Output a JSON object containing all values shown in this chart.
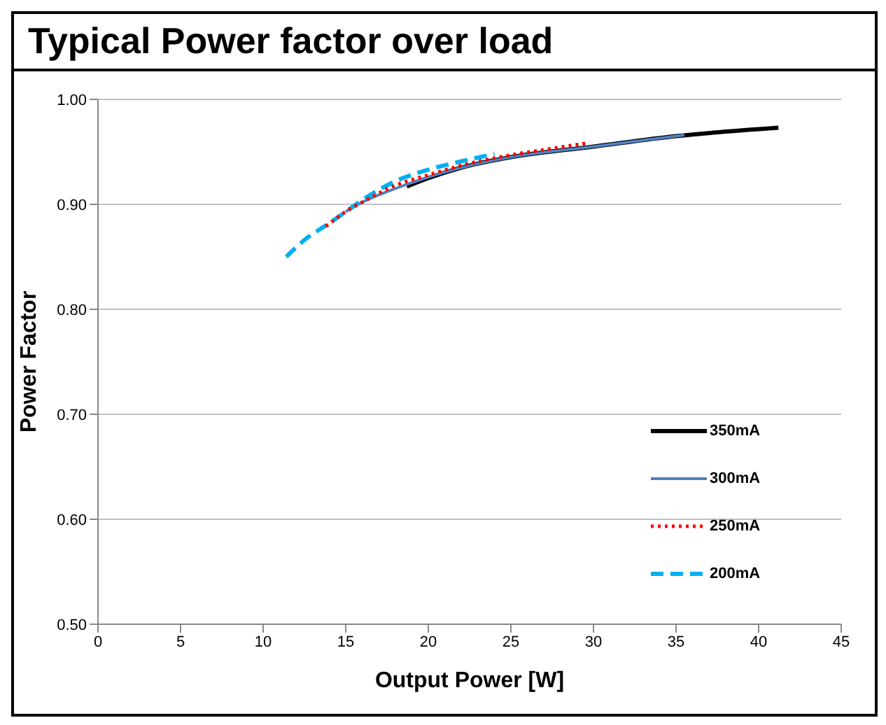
{
  "chart_data": {
    "type": "line",
    "title": "Typical Power factor over load",
    "xlabel": "Output Power [W]",
    "ylabel": "Power Factor",
    "xlim": [
      0,
      45
    ],
    "xticks": [
      0,
      5,
      10,
      15,
      20,
      25,
      30,
      35,
      40,
      45
    ],
    "ylim": [
      0.5,
      1.0
    ],
    "yticks": [
      {
        "value": 0.5,
        "label": "0.50"
      },
      {
        "value": 0.6,
        "label": "0.60"
      },
      {
        "value": 0.7,
        "label": "0.70"
      },
      {
        "value": 0.8,
        "label": "0.80"
      },
      {
        "value": 0.9,
        "label": "0.90"
      },
      {
        "value": 1.0,
        "label": "1.00"
      }
    ],
    "grid": "y",
    "legend": "right",
    "marker": "none",
    "series": [
      {
        "name": "350mA",
        "color": "#000000",
        "line_style": "solid",
        "x": [
          18.7,
          20,
          22,
          25,
          30,
          35,
          41.2
        ],
        "values": [
          0.917,
          0.925,
          0.935,
          0.945,
          0.955,
          0.965,
          0.973
        ]
      },
      {
        "name": "300mA",
        "color": "#4f81bd",
        "line_style": "solid",
        "x": [
          15,
          16,
          18,
          20,
          22,
          25,
          30,
          35.5
        ],
        "values": [
          0.893,
          0.902,
          0.915,
          0.926,
          0.935,
          0.945,
          0.955,
          0.966
        ]
      },
      {
        "name": "250mA",
        "color": "#ff0000",
        "line_style": "dotted",
        "x": [
          13.8,
          15,
          16,
          18,
          20,
          22,
          25,
          27,
          29.5
        ],
        "values": [
          0.879,
          0.893,
          0.902,
          0.918,
          0.928,
          0.937,
          0.947,
          0.952,
          0.958
        ]
      },
      {
        "name": "200mA",
        "color": "#00b0f0",
        "line_style": "dashed",
        "x": [
          11.4,
          12.5,
          14,
          15,
          16,
          18,
          20,
          22,
          24
        ],
        "values": [
          0.85,
          0.866,
          0.882,
          0.893,
          0.904,
          0.922,
          0.933,
          0.941,
          0.948
        ]
      }
    ]
  }
}
